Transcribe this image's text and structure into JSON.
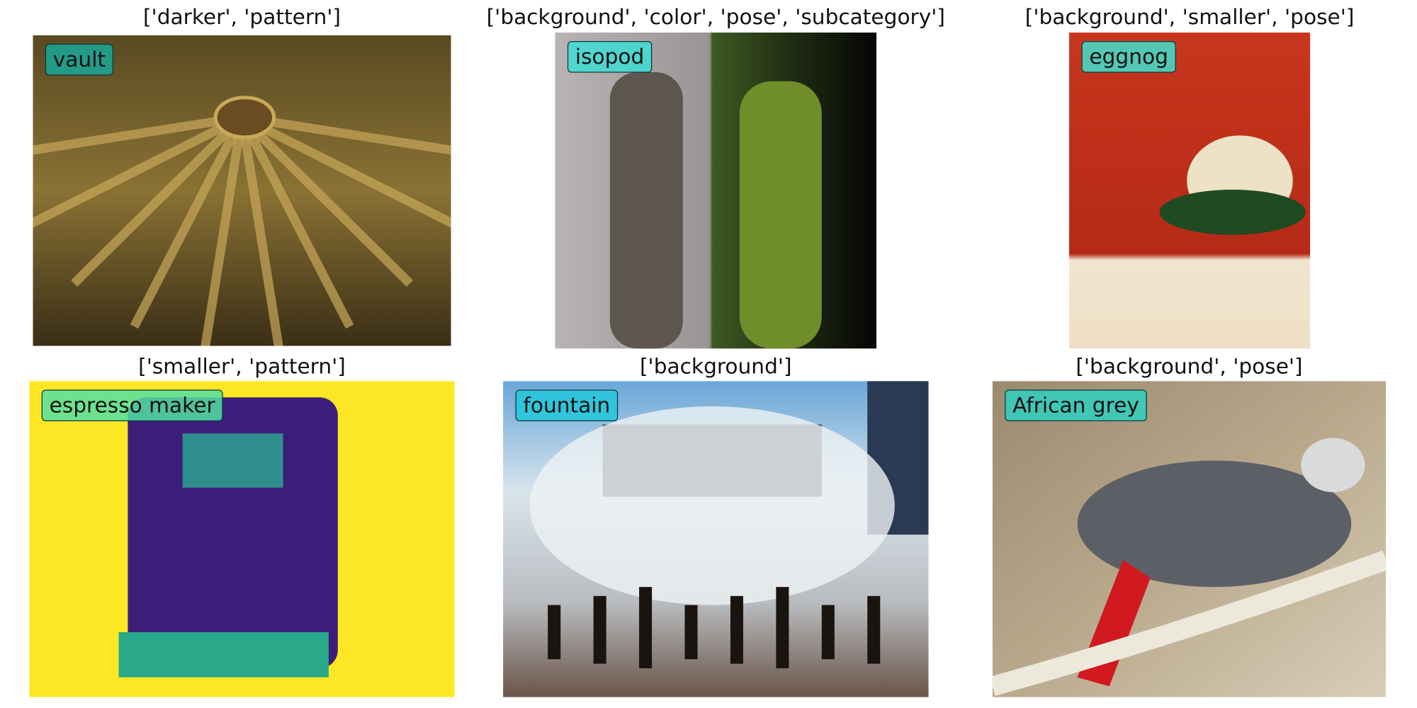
{
  "panels": [
    {
      "title": "['darker', 'pattern']",
      "label": "vault"
    },
    {
      "title": "['background', 'color', 'pose', 'subcategory']",
      "label": "isopod"
    },
    {
      "title": "['background', 'smaller', 'pose']",
      "label": "eggnog"
    },
    {
      "title": "['smaller', 'pattern']",
      "label": "espresso maker"
    },
    {
      "title": "['background']",
      "label": "fountain"
    },
    {
      "title": "['background', 'pose']",
      "label": "African grey"
    }
  ]
}
